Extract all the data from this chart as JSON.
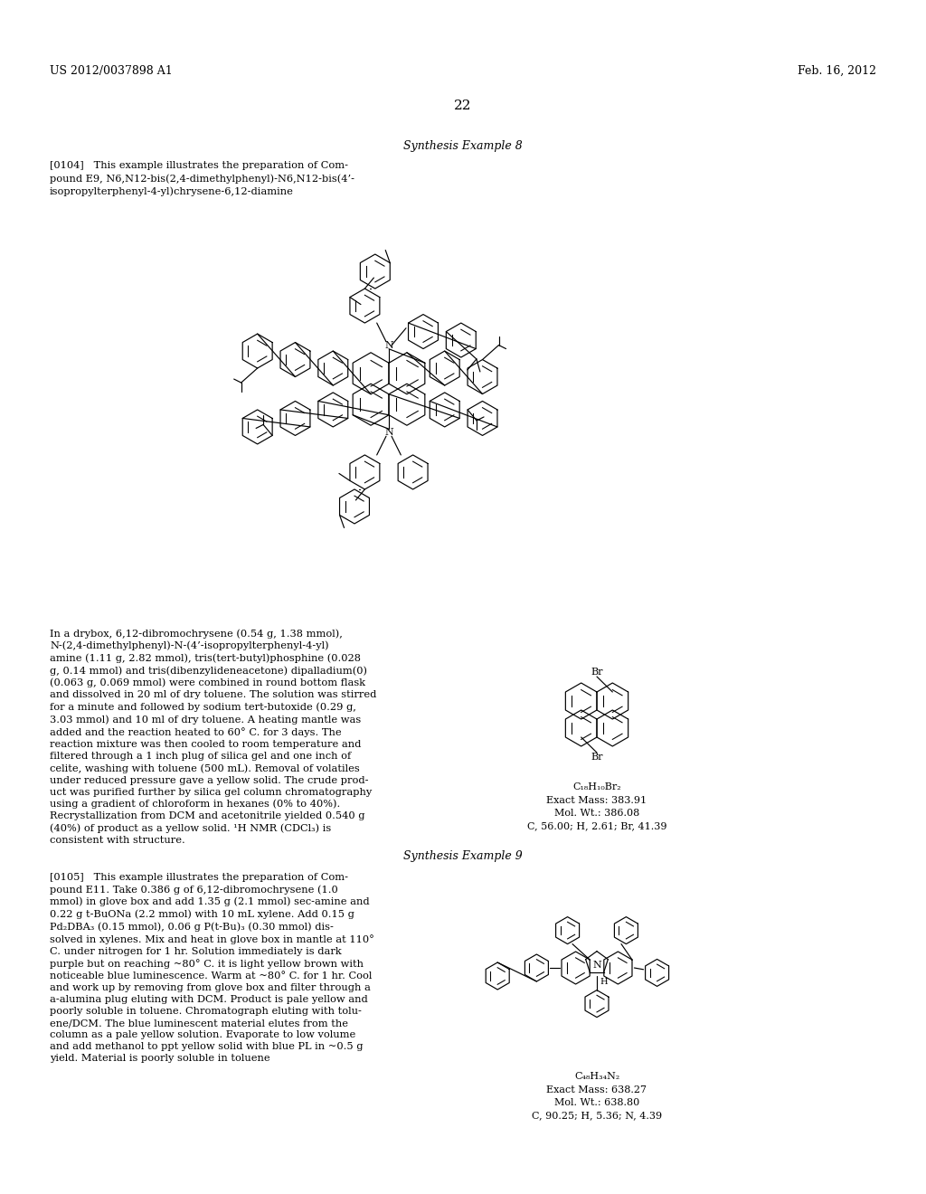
{
  "bg_color": "#ffffff",
  "header_left": "US 2012/0037898 A1",
  "header_right": "Feb. 16, 2012",
  "page_number": "22",
  "section1_title": "Synthesis Example 8",
  "section1_para_line1": "[0104]   This example illustrates the preparation of Com-",
  "section1_para_line2": "pound E9, N6,N12-bis(2,4-dimethylphenyl)-N6,N12-bis(4’-",
  "section1_para_line3": "isopropylterphenyl-4-yl)chrysene-6,12-diamine",
  "section2_body": "In a drybox, 6,12-dibromochrysene (0.54 g, 1.38 mmol),\nN-(2,4-dimethylphenyl)-N-(4’-isopropylterphenyl-4-yl)\namine (1.11 g, 2.82 mmol), tris(tert-butyl)phosphine (0.028\ng, 0.14 mmol) and tris(dibenzylideneacetone) dipalladium(0)\n(0.063 g, 0.069 mmol) were combined in round bottom flask\nand dissolved in 20 ml of dry toluene. The solution was stirred\nfor a minute and followed by sodium tert-butoxide (0.29 g,\n3.03 mmol) and 10 ml of dry toluene. A heating mantle was\nadded and the reaction heated to 60° C. for 3 days. The\nreaction mixture was then cooled to room temperature and\nfiltered through a 1 inch plug of silica gel and one inch of\ncelite, washing with toluene (500 mL). Removal of volatiles\nunder reduced pressure gave a yellow solid. The crude prod-\nuct was purified further by silica gel column chromatography\nusing a gradient of chloroform in hexanes (0% to 40%).\nRecrystallization from DCM and acetonitrile yielded 0.540 g\n(40%) of product as a yellow solid. ¹H NMR (CDCl₃) is\nconsistent with structure.",
  "section3_title": "Synthesis Example 9",
  "section3_para": "[0105]   This example illustrates the preparation of Com-\npound E11. Take 0.386 g of 6,12-dibromochrysene (1.0\nmmol) in glove box and add 1.35 g (2.1 mmol) sec-amine and\n0.22 g t-BuONa (2.2 mmol) with 10 mL xylene. Add 0.15 g\nPd₂DBA₃ (0.15 mmol), 0.06 g P(t-Bu)₃ (0.30 mmol) dis-\nsolved in xylenes. Mix and heat in glove box in mantle at 110°\nC. under nitrogen for 1 hr. Solution immediately is dark\npurple but on reaching ~80° C. it is light yellow brown with\nnoticeable blue luminescence. Warm at ~80° C. for 1 hr. Cool\nand work up by removing from glove box and filter through a\na-alumina plug eluting with DCM. Product is pale yellow and\npoorly soluble in toluene. Chromatograph eluting with tolu-\nene/DCM. The blue luminescent material elutes from the\ncolumn as a pale yellow solution. Evaporate to low volume\nand add methanol to ppt yellow solid with blue PL in ~0.5 g\nyield. Material is poorly soluble in toluene",
  "mol1_formula": "C₁₈H₁₀Br₂",
  "mol1_exact_mass": "Exact Mass: 383.91",
  "mol1_mol_wt": "Mol. Wt.: 386.08",
  "mol1_analysis": "C, 56.00; H, 2.61; Br, 41.39",
  "mol2_formula": "C₄₈H₃₄N₂",
  "mol2_exact_mass": "Exact Mass: 638.27",
  "mol2_mol_wt": "Mol. Wt.: 638.80",
  "mol2_analysis": "C, 90.25; H, 5.36; N, 4.39",
  "text_color": "#000000",
  "font_size_header": 9,
  "font_size_body": 8.2,
  "font_size_title": 9,
  "font_size_formula": 8
}
